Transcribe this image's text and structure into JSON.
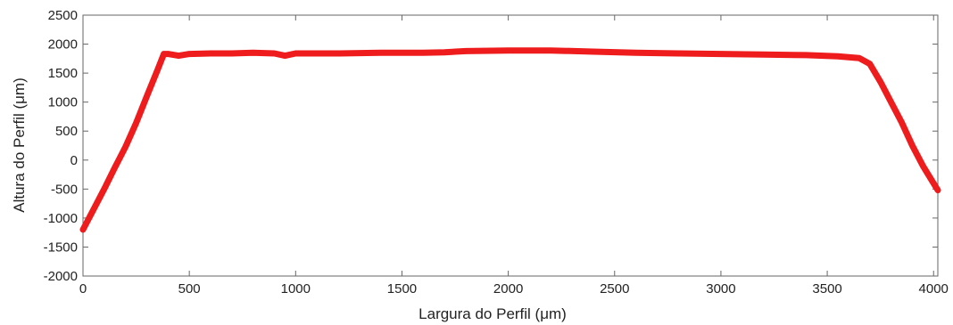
{
  "chart_data": {
    "type": "line",
    "xlabel": "Largura do Perfil (μm)",
    "ylabel": "Altura do Perfil (μm)",
    "xlim": [
      0,
      4020
    ],
    "ylim": [
      -2000,
      2500
    ],
    "xticks": [
      0,
      500,
      1000,
      1500,
      2000,
      2500,
      3000,
      3500,
      4000
    ],
    "xtick_labels": [
      "0",
      "500",
      "1000",
      "1500",
      "2000",
      "2500",
      "3000",
      "3500",
      "4000"
    ],
    "yticks": [
      -2000,
      -1500,
      -1000,
      -500,
      0,
      500,
      1000,
      1500,
      2000,
      2500
    ],
    "ytick_labels": [
      "-2000",
      "-1500",
      "-1000",
      "-500",
      "0",
      "500",
      "1000",
      "1500",
      "2000",
      "2500"
    ],
    "grid": false,
    "legend": "none",
    "line_color": "#ee1c1c",
    "series": [
      {
        "x": [
          0,
          50,
          100,
          150,
          200,
          250,
          300,
          350,
          380,
          400,
          450,
          500,
          600,
          700,
          800,
          900,
          950,
          1000,
          1200,
          1400,
          1600,
          1700,
          1800,
          2000,
          2200,
          2400,
          2600,
          2800,
          3000,
          3200,
          3400,
          3550,
          3650,
          3700,
          3750,
          3800,
          3850,
          3900,
          3950,
          4000,
          4020
        ],
        "y": [
          -1200,
          -850,
          -500,
          -130,
          230,
          640,
          1100,
          1550,
          1830,
          1830,
          1800,
          1830,
          1840,
          1840,
          1850,
          1840,
          1800,
          1840,
          1840,
          1850,
          1850,
          1860,
          1880,
          1890,
          1890,
          1870,
          1850,
          1840,
          1830,
          1820,
          1810,
          1790,
          1760,
          1660,
          1350,
          1000,
          650,
          250,
          -100,
          -400,
          -520
        ]
      }
    ]
  }
}
